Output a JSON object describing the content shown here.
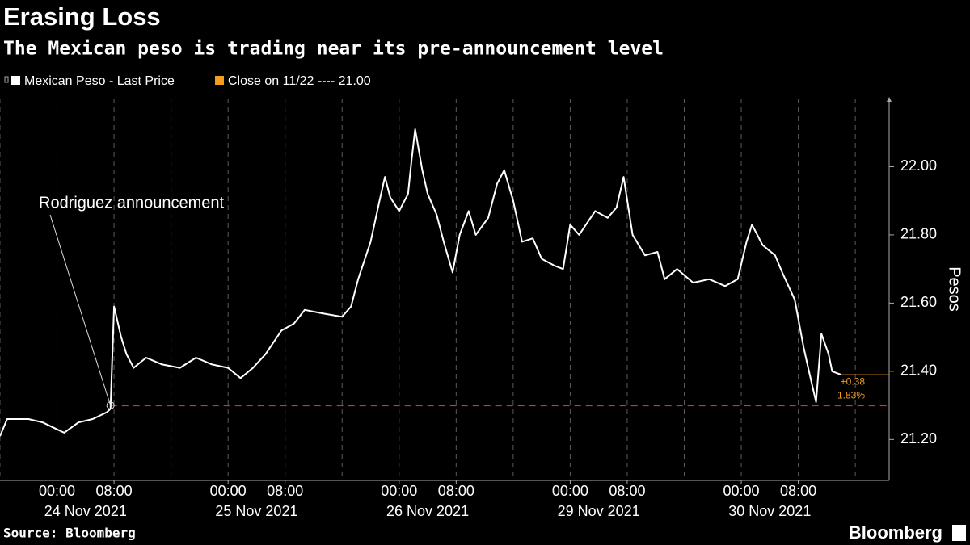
{
  "chart_data": {
    "type": "line",
    "title": "Erasing Loss",
    "subtitle": "The Mexican peso is trading near its pre-announcement level",
    "y_label": "Pesos",
    "source": "Source: Bloomberg",
    "brand": "Bloomberg",
    "x": [
      "23 Nov 2021 16:00",
      "23 Nov 2021 17:00",
      "23 Nov 2021 18:00",
      "23 Nov 2021 20:00",
      "23 Nov 2021 22:00",
      "24 Nov 2021 00:00",
      "24 Nov 2021 01:00",
      "24 Nov 2021 03:00",
      "24 Nov 2021 05:00",
      "24 Nov 2021 07:00",
      "24 Nov 2021 07:30",
      "24 Nov 2021 08:00",
      "24 Nov 2021 09:00",
      "24 Nov 2021 09:45",
      "24 Nov 2021 10:45",
      "24 Nov 2021 12:30",
      "24 Nov 2021 14:45",
      "24 Nov 2021 17:15",
      "24 Nov 2021 19:30",
      "24 Nov 2021 21:45",
      "25 Nov 2021 00:00",
      "25 Nov 2021 01:45",
      "25 Nov 2021 03:30",
      "25 Nov 2021 05:15",
      "25 Nov 2021 07:30",
      "25 Nov 2021 09:15",
      "25 Nov 2021 10:45",
      "25 Nov 2021 13:15",
      "25 Nov 2021 16:00",
      "25 Nov 2021 17:15",
      "25 Nov 2021 18:15",
      "25 Nov 2021 20:00",
      "25 Nov 2021 21:15",
      "25 Nov 2021 22:00",
      "25 Nov 2021 22:45",
      "26 Nov 2021 00:00",
      "26 Nov 2021 01:15",
      "26 Nov 2021 01:45",
      "26 Nov 2021 02:15",
      "26 Nov 2021 03:15",
      "26 Nov 2021 04:00",
      "26 Nov 2021 05:15",
      "26 Nov 2021 06:15",
      "26 Nov 2021 07:30",
      "26 Nov 2021 08:30",
      "26 Nov 2021 09:45",
      "26 Nov 2021 10:45",
      "26 Nov 2021 12:30",
      "26 Nov 2021 13:45",
      "26 Nov 2021 14:45",
      "26 Nov 2021 16:00",
      "26 Nov 2021 17:15",
      "26 Nov 2021 18:45",
      "26 Nov 2021 20:00",
      "26 Nov 2021 21:45",
      "26 Nov 2021 23:00",
      "29 Nov 2021 00:00",
      "29 Nov 2021 01:15",
      "29 Nov 2021 03:30",
      "29 Nov 2021 05:15",
      "29 Nov 2021 06:30",
      "29 Nov 2021 07:30",
      "29 Nov 2021 08:45",
      "29 Nov 2021 10:30",
      "29 Nov 2021 12:15",
      "29 Nov 2021 13:15",
      "29 Nov 2021 15:00",
      "29 Nov 2021 17:15",
      "29 Nov 2021 19:30",
      "29 Nov 2021 21:45",
      "29 Nov 2021 23:30",
      "30 Nov 2021 00:45",
      "30 Nov 2021 01:30",
      "30 Nov 2021 03:00",
      "30 Nov 2021 04:45",
      "30 Nov 2021 05:45",
      "30 Nov 2021 07:30",
      "30 Nov 2021 08:45",
      "30 Nov 2021 09:30",
      "30 Nov 2021 10:30",
      "30 Nov 2021 11:15",
      "30 Nov 2021 12:15",
      "30 Nov 2021 12:45",
      "30 Nov 2021 14:00"
    ],
    "series": [
      {
        "name": "Mexican Peso - Last Price",
        "color": "#ffffff",
        "values": [
          21.21,
          21.26,
          21.26,
          21.26,
          21.25,
          21.23,
          21.22,
          21.25,
          21.26,
          21.28,
          21.29,
          21.59,
          21.5,
          21.45,
          21.41,
          21.44,
          21.42,
          21.41,
          21.44,
          21.42,
          21.41,
          21.38,
          21.41,
          21.45,
          21.52,
          21.54,
          21.58,
          21.57,
          21.56,
          21.59,
          21.67,
          21.78,
          21.9,
          21.97,
          21.91,
          21.87,
          21.92,
          22.02,
          22.11,
          21.99,
          21.92,
          21.86,
          21.78,
          21.69,
          21.8,
          21.87,
          21.8,
          21.85,
          21.95,
          21.99,
          21.9,
          21.78,
          21.79,
          21.73,
          21.71,
          21.7,
          21.83,
          21.8,
          21.87,
          21.85,
          21.88,
          21.97,
          21.8,
          21.74,
          21.75,
          21.67,
          21.7,
          21.66,
          21.67,
          21.65,
          21.67,
          21.78,
          21.83,
          21.77,
          21.74,
          21.69,
          21.61,
          21.47,
          21.4,
          21.31,
          21.51,
          21.45,
          21.4,
          21.39
        ]
      }
    ],
    "legend_extra": {
      "name": "Close on 11/22 ---- 21.00",
      "color": "#f39c1e"
    },
    "reference_line": {
      "value": 21.3,
      "color": "#e8253a"
    },
    "annotation": {
      "text": "Rodriguez announcement",
      "x": "24 Nov 2021 07:30",
      "y": 21.3
    },
    "change_labels": [
      "+0.38",
      "1.83%"
    ],
    "xlim": [
      "23 Nov 2021 16:00",
      "30 Nov 2021 20:45"
    ],
    "xticks": [
      {
        "value": "24 Nov 2021 00:00",
        "label": "00:00"
      },
      {
        "value": "24 Nov 2021 08:00",
        "label": "08:00"
      },
      {
        "value": "25 Nov 2021 00:00",
        "label": "00:00"
      },
      {
        "value": "25 Nov 2021 08:00",
        "label": "08:00"
      },
      {
        "value": "26 Nov 2021 00:00",
        "label": "00:00"
      },
      {
        "value": "26 Nov 2021 08:00",
        "label": "08:00"
      },
      {
        "value": "29 Nov 2021 00:00",
        "label": "00:00"
      },
      {
        "value": "29 Nov 2021 08:00",
        "label": "08:00"
      },
      {
        "value": "30 Nov 2021 00:00",
        "label": "00:00"
      },
      {
        "value": "30 Nov 2021 08:00",
        "label": "08:00"
      }
    ],
    "xtick_dates": [
      "24 Nov 2021",
      "25 Nov 2021",
      "26 Nov 2021",
      "29 Nov 2021",
      "30 Nov 2021"
    ],
    "xgrid": [
      "23 Nov 2021 16:00",
      "24 Nov 2021 00:00",
      "24 Nov 2021 08:00",
      "24 Nov 2021 16:00",
      "25 Nov 2021 00:00",
      "25 Nov 2021 08:00",
      "25 Nov 2021 16:00",
      "26 Nov 2021 00:00",
      "26 Nov 2021 08:00",
      "26 Nov 2021 16:00",
      "29 Nov 2021 00:00",
      "29 Nov 2021 08:00",
      "29 Nov 2021 16:00",
      "30 Nov 2021 00:00",
      "30 Nov 2021 08:00",
      "30 Nov 2021 16:00"
    ],
    "ylim": [
      21.08,
      22.2
    ],
    "yticks": [
      {
        "value": 21.2,
        "label": "21.20"
      },
      {
        "value": 21.4,
        "label": "21.40"
      },
      {
        "value": 21.6,
        "label": "21.60"
      },
      {
        "value": 21.8,
        "label": "21.80"
      },
      {
        "value": 22,
        "label": "22.00"
      }
    ]
  }
}
